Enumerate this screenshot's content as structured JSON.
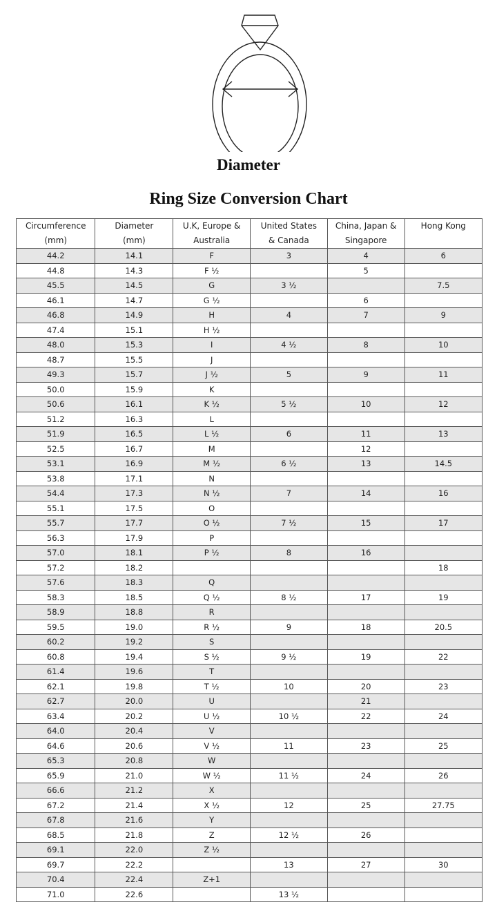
{
  "diagram_label": "Diameter",
  "title": "Ring Size Conversion Chart",
  "colors": {
    "row_shade": "#e6e6e6",
    "border": "#555555"
  },
  "columns": [
    [
      "Circumference",
      "(mm)"
    ],
    [
      "Diameter",
      "(mm)"
    ],
    [
      "U.K, Europe &",
      "Australia"
    ],
    [
      "United States",
      "& Canada"
    ],
    [
      "China, Japan &",
      "Singapore"
    ],
    [
      "Hong Kong",
      ""
    ]
  ],
  "rows": [
    [
      "44.2",
      "14.1",
      "F",
      "3",
      "4",
      "6"
    ],
    [
      "44.8",
      "14.3",
      "F ½",
      "",
      "5",
      ""
    ],
    [
      "45.5",
      "14.5",
      "G",
      "3 ½",
      "",
      "7.5"
    ],
    [
      "46.1",
      "14.7",
      "G ½",
      "",
      "6",
      ""
    ],
    [
      "46.8",
      "14.9",
      "H",
      "4",
      "7",
      "9"
    ],
    [
      "47.4",
      "15.1",
      "H ½",
      "",
      "",
      ""
    ],
    [
      "48.0",
      "15.3",
      "I",
      "4 ½",
      "8",
      "10"
    ],
    [
      "48.7",
      "15.5",
      "J",
      "",
      "",
      ""
    ],
    [
      "49.3",
      "15.7",
      "J ½",
      "5",
      "9",
      "11"
    ],
    [
      "50.0",
      "15.9",
      "K",
      "",
      "",
      ""
    ],
    [
      "50.6",
      "16.1",
      "K ½",
      "5 ½",
      "10",
      "12"
    ],
    [
      "51.2",
      "16.3",
      "L",
      "",
      "",
      ""
    ],
    [
      "51.9",
      "16.5",
      "L ½",
      "6",
      "11",
      "13"
    ],
    [
      "52.5",
      "16.7",
      "M",
      "",
      "12",
      ""
    ],
    [
      "53.1",
      "16.9",
      "M ½",
      "6 ½",
      "13",
      "14.5"
    ],
    [
      "53.8",
      "17.1",
      "N",
      "",
      "",
      ""
    ],
    [
      "54.4",
      "17.3",
      "N ½",
      "7",
      "14",
      "16"
    ],
    [
      "55.1",
      "17.5",
      "O",
      "",
      "",
      ""
    ],
    [
      "55.7",
      "17.7",
      "O ½",
      "7 ½",
      "15",
      "17"
    ],
    [
      "56.3",
      "17.9",
      "P",
      "",
      "",
      ""
    ],
    [
      "57.0",
      "18.1",
      "P ½",
      "8",
      "16",
      ""
    ],
    [
      "57.2",
      "18.2",
      "",
      "",
      "",
      "18"
    ],
    [
      "57.6",
      "18.3",
      "Q",
      "",
      "",
      ""
    ],
    [
      "58.3",
      "18.5",
      "Q ½",
      "8 ½",
      "17",
      "19"
    ],
    [
      "58.9",
      "18.8",
      "R",
      "",
      "",
      ""
    ],
    [
      "59.5",
      "19.0",
      "R ½",
      "9",
      "18",
      "20.5"
    ],
    [
      "60.2",
      "19.2",
      "S",
      "",
      "",
      ""
    ],
    [
      "60.8",
      "19.4",
      "S ½",
      "9 ½",
      "19",
      "22"
    ],
    [
      "61.4",
      "19.6",
      "T",
      "",
      "",
      ""
    ],
    [
      "62.1",
      "19.8",
      "T ½",
      "10",
      "20",
      "23"
    ],
    [
      "62.7",
      "20.0",
      "U",
      "",
      "21",
      ""
    ],
    [
      "63.4",
      "20.2",
      "U ½",
      "10 ½",
      "22",
      "24"
    ],
    [
      "64.0",
      "20.4",
      "V",
      "",
      "",
      ""
    ],
    [
      "64.6",
      "20.6",
      "V ½",
      "11",
      "23",
      "25"
    ],
    [
      "65.3",
      "20.8",
      "W",
      "",
      "",
      ""
    ],
    [
      "65.9",
      "21.0",
      "W ½",
      "11 ½",
      "24",
      "26"
    ],
    [
      "66.6",
      "21.2",
      "X",
      "",
      "",
      ""
    ],
    [
      "67.2",
      "21.4",
      "X ½",
      "12",
      "25",
      "27.75"
    ],
    [
      "67.8",
      "21.6",
      "Y",
      "",
      "",
      ""
    ],
    [
      "68.5",
      "21.8",
      "Z",
      "12 ½",
      "26",
      ""
    ],
    [
      "69.1",
      "22.0",
      "Z ½",
      "",
      "",
      ""
    ],
    [
      "69.7",
      "22.2",
      "",
      "13",
      "27",
      "30"
    ],
    [
      "70.4",
      "22.4",
      "Z+1",
      "",
      "",
      ""
    ],
    [
      "71.0",
      "22.6",
      "",
      "13 ½",
      "",
      ""
    ]
  ]
}
